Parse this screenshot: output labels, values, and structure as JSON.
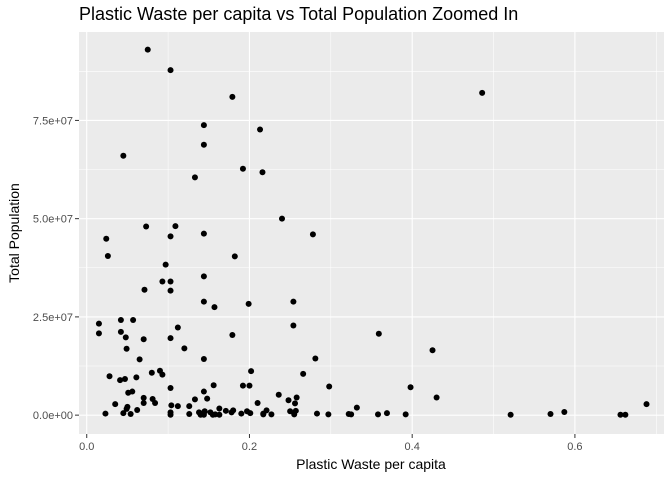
{
  "chart_data": {
    "type": "scatter",
    "title": "Plastic Waste per capita vs Total Population Zoomed In",
    "xlabel": "Plastic Waste per capita",
    "ylabel": "Total Population",
    "xlim": [
      -0.0095,
      0.7095
    ],
    "ylim": [
      -4800000,
      97500000
    ],
    "x_ticks": [
      0.0,
      0.2,
      0.4,
      0.6
    ],
    "x_tick_labels": [
      "0.0",
      "0.2",
      "0.4",
      "0.6"
    ],
    "y_ticks": [
      0,
      25000000,
      50000000,
      75000000
    ],
    "y_tick_labels": [
      "0.0e+00",
      "2.5e+07",
      "5.0e+07",
      "7.5e+07"
    ],
    "grid": true,
    "panel_color": "#ebebeb",
    "grid_color": "#ffffff",
    "point_color": "#000000",
    "x": [
      0.075,
      0.103,
      0.179,
      0.486,
      0.144,
      0.213,
      0.144,
      0.045,
      0.133,
      0.192,
      0.216,
      0.24,
      0.073,
      0.278,
      0.024,
      0.103,
      0.109,
      0.144,
      0.026,
      0.182,
      0.097,
      0.144,
      0.093,
      0.103,
      0.071,
      0.103,
      0.144,
      0.199,
      0.157,
      0.254,
      0.015,
      0.042,
      0.057,
      0.015,
      0.042,
      0.254,
      0.112,
      0.359,
      0.048,
      0.07,
      0.179,
      0.103,
      0.065,
      0.049,
      0.425,
      0.12,
      0.144,
      0.281,
      0.202,
      0.09,
      0.028,
      0.08,
      0.266,
      0.093,
      0.061,
      0.041,
      0.047,
      0.103,
      0.192,
      0.156,
      0.2,
      0.298,
      0.398,
      0.144,
      0.056,
      0.051,
      0.43,
      0.258,
      0.148,
      0.07,
      0.081,
      0.133,
      0.248,
      0.104,
      0.236,
      0.084,
      0.07,
      0.21,
      0.256,
      0.035,
      0.05,
      0.049,
      0.062,
      0.112,
      0.332,
      0.126,
      0.163,
      0.171,
      0.18,
      0.221,
      0.257,
      0.25,
      0.587,
      0.145,
      0.197,
      0.103,
      0.144,
      0.152,
      0.201,
      0.045,
      0.369,
      0.023,
      0.283,
      0.054,
      0.126,
      0.138,
      0.178,
      0.19,
      0.217,
      0.688,
      0.322,
      0.255,
      0.297,
      0.144,
      0.227,
      0.163,
      0.103,
      0.155,
      0.325,
      0.158,
      0.392,
      0.521,
      0.57,
      0.656,
      0.662,
      0.358,
      0.217,
      0.14
    ],
    "y": [
      93000000,
      87800000,
      81000000,
      82000000,
      73800000,
      72700000,
      68800000,
      66000000,
      60500000,
      62700000,
      61800000,
      50000000,
      48000000,
      46000000,
      44900000,
      45500000,
      48100000,
      46200000,
      40500000,
      40400000,
      38300000,
      35300000,
      34000000,
      34000000,
      31900000,
      31700000,
      28900000,
      28300000,
      27500000,
      28900000,
      23300000,
      24200000,
      24200000,
      20800000,
      21200000,
      22800000,
      22300000,
      20700000,
      19800000,
      19300000,
      20400000,
      19600000,
      14200000,
      16900000,
      16500000,
      17000000,
      14300000,
      14400000,
      11200000,
      11300000,
      9900000,
      10800000,
      10500000,
      10300000,
      9600000,
      8900000,
      9200000,
      6900000,
      7500000,
      7600000,
      7500000,
      7300000,
      7100000,
      6000000,
      6000000,
      5700000,
      4500000,
      4500000,
      4200000,
      4400000,
      4100000,
      4000000,
      3800000,
      2500000,
      5200000,
      3100000,
      3100000,
      3100000,
      3000000,
      2800000,
      2100000,
      1600000,
      1300000,
      2300000,
      1900000,
      2300000,
      1700000,
      1100000,
      1200000,
      1200000,
      1100000,
      1000000,
      800000,
      1000000,
      1000000,
      700000,
      600000,
      700000,
      500000,
      500000,
      500000,
      400000,
      400000,
      300000,
      300000,
      700000,
      700000,
      400000,
      200000,
      2800000,
      300000,
      200000,
      200000,
      100000,
      200000,
      100000,
      100000,
      100000,
      200000,
      200000,
      200000,
      100000,
      300000,
      100000,
      100000,
      200000,
      400000,
      100000
    ]
  }
}
